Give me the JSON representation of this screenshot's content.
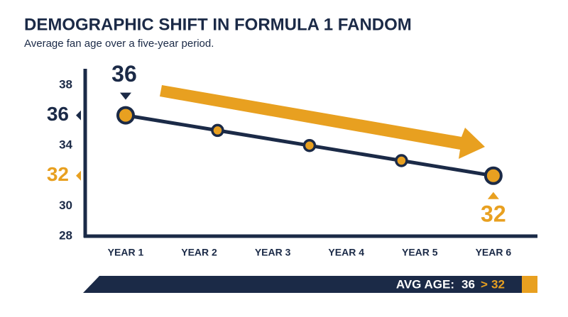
{
  "chart_data": {
    "type": "line",
    "title": "DEMOGRAPHIC SHIFT IN FORMULA 1 FANDOM",
    "subtitle": "Average fan age over a five-year period.",
    "x": [
      1,
      2.25,
      3.5,
      4.75,
      6
    ],
    "values": [
      36,
      35,
      34,
      33,
      32
    ],
    "color": "#1b2a47",
    "accent_color": "#e8a020",
    "xlim": [
      0.45,
      6.6
    ],
    "xticks": [
      {
        "value": 1,
        "label": "YEAR 1"
      },
      {
        "value": 2,
        "label": "YEAR 2"
      },
      {
        "value": 3,
        "label": "YEAR 3"
      },
      {
        "value": 4,
        "label": "YEAR 4"
      },
      {
        "value": 5,
        "label": "YEAR 5"
      },
      {
        "value": 6,
        "label": "YEAR 6"
      }
    ],
    "ylim": [
      28,
      39
    ],
    "yticks": [
      28,
      30,
      32,
      34,
      36,
      38
    ],
    "grid": false,
    "footer": {
      "label": "AVG AGE:",
      "separator": ">"
    }
  }
}
